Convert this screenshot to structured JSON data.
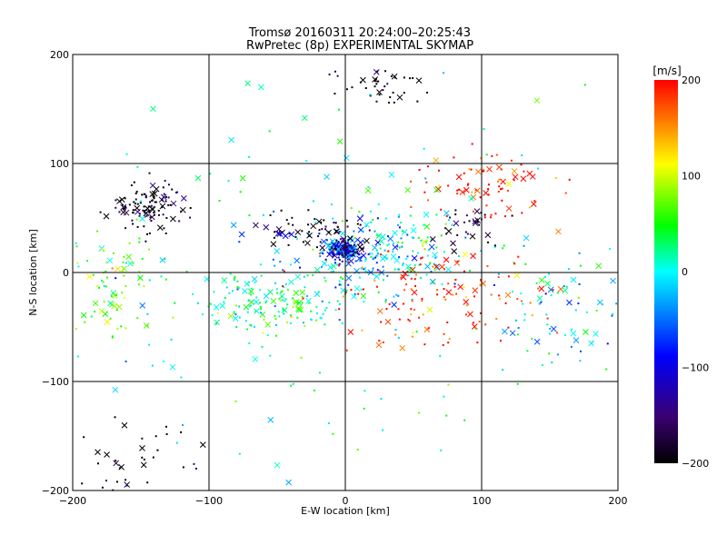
{
  "chart_data": {
    "type": "scatter",
    "title": "Tromsø 20160311 20:24:00–20:25:43",
    "subtitle": "RwPretec (8p) EXPERIMENTAL SKYMAP",
    "xlabel": "E-W location [km]",
    "ylabel": "N-S location [km]",
    "xlim": [
      -200,
      200
    ],
    "ylim": [
      -200,
      200
    ],
    "x_ticks": [
      -200,
      -100,
      0,
      100,
      200
    ],
    "y_ticks": [
      -200,
      -100,
      0,
      100,
      200
    ],
    "grid": true,
    "markers": [
      "point",
      "x"
    ],
    "colorbar": {
      "label": "[m/s]",
      "range": [
        -200,
        200
      ],
      "ticks": [
        -200,
        -100,
        0,
        100,
        200
      ],
      "colors": [
        "#000000",
        "#3a0070",
        "#0000ff",
        "#00ffff",
        "#00ff00",
        "#ffff00",
        "#ff0000"
      ]
    },
    "clusters": [
      {
        "x": 0,
        "y": 20,
        "sx": 6,
        "sy": 5,
        "v": -110,
        "n": 160
      },
      {
        "x": 15,
        "y": 15,
        "sx": 30,
        "sy": 18,
        "v": -30,
        "n": 170
      },
      {
        "x": 50,
        "y": 30,
        "sx": 30,
        "sy": 15,
        "v": 10,
        "n": 50
      },
      {
        "x": -50,
        "y": -30,
        "sx": 30,
        "sy": 14,
        "v": 20,
        "n": 150
      },
      {
        "x": 60,
        "y": -25,
        "sx": 40,
        "sy": 25,
        "v": 190,
        "n": 140
      },
      {
        "x": -145,
        "y": 60,
        "sx": 15,
        "sy": 10,
        "v": -200,
        "n": 110
      },
      {
        "x": -170,
        "y": -10,
        "sx": 20,
        "sy": 25,
        "v": 70,
        "n": 90
      },
      {
        "x": 100,
        "y": 80,
        "sx": 25,
        "sy": 15,
        "v": 200,
        "n": 80
      },
      {
        "x": 160,
        "y": -30,
        "sx": 25,
        "sy": 25,
        "v": -20,
        "n": 70
      },
      {
        "x": -20,
        "y": 35,
        "sx": 20,
        "sy": 8,
        "v": -200,
        "n": 70
      },
      {
        "x": 25,
        "y": 170,
        "sx": 15,
        "sy": 8,
        "v": -200,
        "n": 40
      },
      {
        "x": -160,
        "y": -170,
        "sx": 25,
        "sy": 20,
        "v": -200,
        "n": 40
      },
      {
        "x": 90,
        "y": 40,
        "sx": 15,
        "sy": 10,
        "v": -200,
        "n": 30
      },
      {
        "x": 0,
        "y": 0,
        "sx": 120,
        "sy": 110,
        "v": 0,
        "n": 160
      }
    ]
  }
}
